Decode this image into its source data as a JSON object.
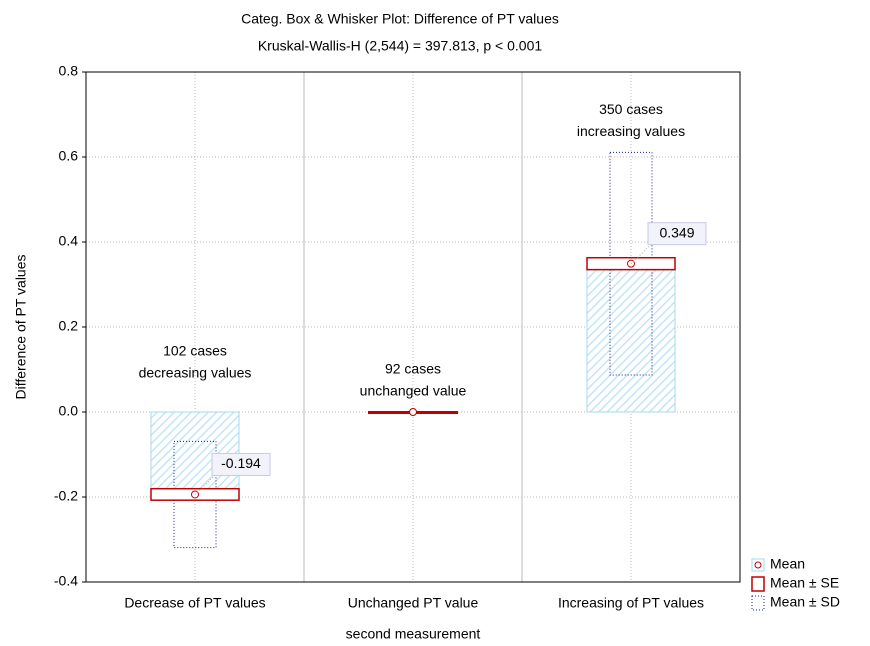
{
  "chart_data": {
    "type": "box_whisker",
    "title": "Categ. Box & Whisker Plot: Difference of PT values",
    "subtitle": "Kruskal-Wallis-H (2,544) = 397.813, p < 0.001",
    "xlabel": "second measurement",
    "ylabel": "Difference of PT values",
    "categories": [
      "Decrease of  PT values",
      "Unchanged PT value",
      "Increasing of  PT values"
    ],
    "annotations": [
      [
        "102 cases",
        "decreasing values"
      ],
      [
        "92 cases",
        "unchanged value"
      ],
      [
        "350 cases",
        "increasing values"
      ]
    ],
    "series": [
      {
        "name": "Mean",
        "color": "#a6d8ef",
        "values": [
          -0.194,
          0,
          0.349
        ],
        "value_labels": [
          "-0.194",
          null,
          "0.349"
        ]
      },
      {
        "name": "Mean ± SE",
        "color": "#c00000",
        "values": [
          0.0135,
          0,
          0.014
        ]
      },
      {
        "name": "Mean ± SD",
        "color": "#1a1aa0",
        "values": [
          0.125,
          0,
          0.262
        ]
      }
    ],
    "ylim": [
      -0.4,
      0.8
    ],
    "yticks": [
      -0.4,
      -0.2,
      {
        "value": 0,
        "label": "0.0"
      },
      0.2,
      0.4,
      0.6,
      0.8
    ],
    "grid": true,
    "legend": "bottom-right"
  }
}
